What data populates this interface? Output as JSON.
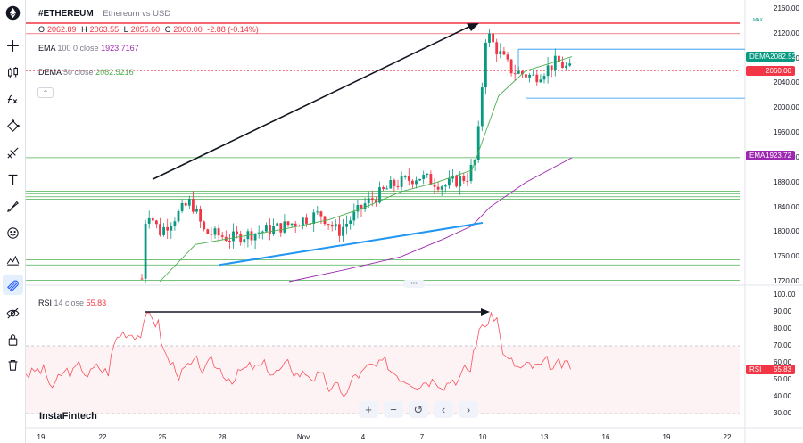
{
  "symbol": {
    "ticker": "#ETHEREUM",
    "description": "Ethereum vs USD"
  },
  "ohlc": {
    "o_label": "O",
    "o": "2062.89",
    "h_label": "H",
    "h": "2063.55",
    "l_label": "L",
    "l": "2055.60",
    "c_label": "C",
    "c": "2060.00",
    "change": "-2.88 (-0.14%)"
  },
  "ema_legend": {
    "name": "EMA",
    "params": "100 0 close",
    "value": "1923.7167"
  },
  "dema_legend": {
    "name": "DEMA",
    "params": "50 close",
    "value": "2082.5216"
  },
  "rsi_legend": {
    "name": "RSI",
    "params": "14 close",
    "value": "55.83"
  },
  "price_axis": [
    "2160.00",
    "2120.00",
    "2080.00",
    "2040.00",
    "2000.00",
    "1960.00",
    "1920.00",
    "1880.00",
    "1840.00",
    "1800.00",
    "1760.00",
    "1720.00"
  ],
  "rsi_axis": [
    "100.00",
    "90.00",
    "80.00",
    "70.00",
    "60.00",
    "50.00",
    "40.00",
    "30.00"
  ],
  "time_axis": [
    "19",
    "22",
    "25",
    "28",
    "Nov",
    "4",
    "7",
    "10",
    "13",
    "16",
    "19",
    "22"
  ],
  "max_label": "MAX",
  "badges": {
    "dema": {
      "name": "DEMA",
      "value": "2082.52"
    },
    "price": {
      "value": "2060.00"
    },
    "ema": {
      "name": "EMA",
      "value": "1923.72"
    },
    "rsi": {
      "name": "RSI",
      "value": "55.83"
    }
  },
  "watermark": "InstaFintech",
  "nav_buttons": [
    {
      "name": "zoom-in",
      "icon": "plus"
    },
    {
      "name": "zoom-out",
      "icon": "minus"
    },
    {
      "name": "reset",
      "icon": "reset"
    },
    {
      "name": "scroll-left",
      "icon": "chevron-left"
    },
    {
      "name": "scroll-right",
      "icon": "chevron-right"
    }
  ],
  "toolbar_icons": [
    "ethereum-logo-icon",
    "crosshair-icon",
    "trend-line-icon",
    "candles-icon",
    "fib-icon",
    "pattern-icon",
    "prediction-icon",
    "text-icon",
    "brush-icon",
    "emoji-icon",
    "measure-icon",
    "magnet-icon",
    "eye-icon",
    "lock-icon",
    "trash-icon"
  ],
  "colors": {
    "up": "#089981",
    "down": "#f23645",
    "ema": "#9c27b0",
    "dema": "#4caf50",
    "rsi": "#f7525f",
    "support": "#2196f3",
    "resistance": "#f23645"
  },
  "chart_data": {
    "type": "candlestick",
    "price_range": [
      1720,
      2160
    ],
    "rsi_range": [
      30,
      100
    ],
    "rsi_levels": [
      70,
      30
    ],
    "trend_up_arrow": {
      "from_price": 1885,
      "to_price": 2135
    },
    "support_trend": {
      "from_price": 1747,
      "to_price": 1815
    },
    "rsi_arrow": {
      "value": 90
    },
    "horizontal_levels": [
      2137,
      2120,
      1920,
      1866,
      1862,
      1857,
      1853,
      1755,
      1747,
      1722
    ],
    "rect_zone": {
      "top": 2095,
      "bottom": 2016
    },
    "last_close": 2060
  }
}
